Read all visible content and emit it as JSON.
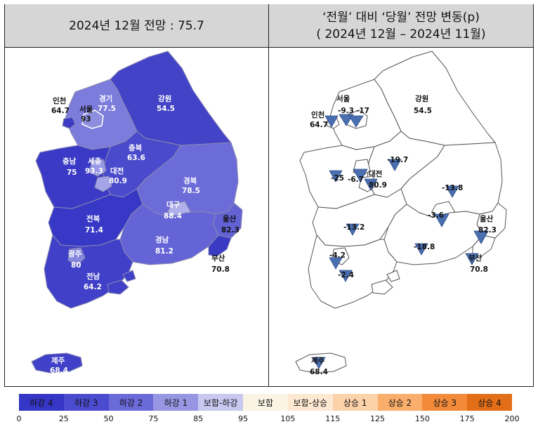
{
  "left_panel": {
    "title": "2024년 12월 전망 : 75.7"
  },
  "right_panel": {
    "title_line1": "‘전월’ 대비 ‘당월’ 전망 변동(p)",
    "title_line2": "( 2024년 12월 –  2024년 11월)"
  },
  "regions": [
    {
      "id": "incheon",
      "name": "인천",
      "value": "64.7",
      "change": ""
    },
    {
      "id": "seoul",
      "name": "서울",
      "value": "93",
      "change": "-9.3"
    },
    {
      "id": "gyeonggi",
      "name": "경기",
      "value": "77.5",
      "change": "-17"
    },
    {
      "id": "gangwon",
      "name": "강원",
      "value": "54.5",
      "change": ""
    },
    {
      "id": "chungnam",
      "name": "충남",
      "value": "75",
      "change": "-25"
    },
    {
      "id": "sejong",
      "name": "세종",
      "value": "93.3",
      "change": "-6.7"
    },
    {
      "id": "daejeon",
      "name": "대전",
      "value": "80.9",
      "change": ""
    },
    {
      "id": "chungbuk",
      "name": "충북",
      "value": "63.6",
      "change": "-19.7"
    },
    {
      "id": "gyeongbuk",
      "name": "경북",
      "value": "78.5",
      "change": "-13.8"
    },
    {
      "id": "daegu",
      "name": "대구",
      "value": "88.4",
      "change": "-3.6"
    },
    {
      "id": "ulsan",
      "name": "울산",
      "value": "82.3",
      "change": ""
    },
    {
      "id": "jeonbuk",
      "name": "전북",
      "value": "71.4",
      "change": "-13.2"
    },
    {
      "id": "gyeongnam",
      "name": "경남",
      "value": "81.2",
      "change": "-18.8"
    },
    {
      "id": "busan",
      "name": "부산",
      "value": "70.8",
      "change": ""
    },
    {
      "id": "gwangju",
      "name": "광주",
      "value": "80",
      "change": "-4.2"
    },
    {
      "id": "jeonnam",
      "name": "전남",
      "value": "64.2",
      "change": "-2.4"
    },
    {
      "id": "jeju",
      "name": "제주",
      "value": "68.4",
      "change": ""
    }
  ],
  "legend": {
    "categories": [
      {
        "label": "하강 4",
        "color": "#3535c6"
      },
      {
        "label": "하강 3",
        "color": "#4b4bd0"
      },
      {
        "label": "하강 2",
        "color": "#6a6ad8"
      },
      {
        "label": "하강 1",
        "color": "#9696e2"
      },
      {
        "label": "보합-하강",
        "color": "#c8c8f0"
      },
      {
        "label": "보합",
        "color": "#fbf4e4"
      },
      {
        "label": "보합-상승",
        "color": "#fde9d2"
      },
      {
        "label": "상승 1",
        "color": "#fcd2aa"
      },
      {
        "label": "상승 2",
        "color": "#f9ae6c"
      },
      {
        "label": "상승 3",
        "color": "#f28a3a"
      },
      {
        "label": "상승 4",
        "color": "#e26e18"
      }
    ],
    "ticks": [
      "0",
      "25",
      "50",
      "75",
      "85",
      "95",
      "105",
      "115",
      "125",
      "150",
      "175",
      "200"
    ]
  },
  "colors": {
    "header_bg": "#d6d6d6",
    "triangle": "#4a6fb0",
    "outline": "#555555"
  }
}
